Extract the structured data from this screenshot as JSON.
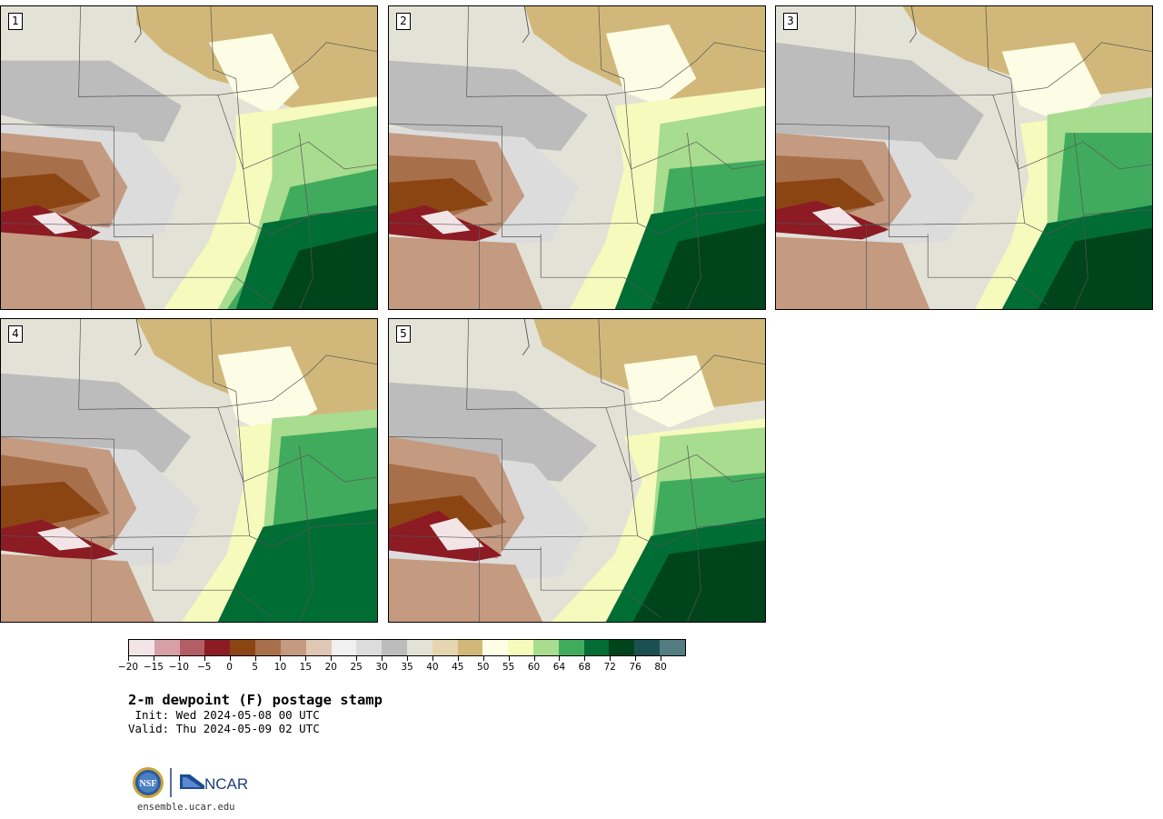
{
  "product": {
    "title": "2-m dewpoint (F) postage stamp",
    "init": " Init: Wed 2024-05-08 00 UTC",
    "valid": "Valid: Thu 2024-05-09 02 UTC",
    "website": "ensemble.ucar.edu"
  },
  "members": [
    "1",
    "2",
    "3",
    "4",
    "5"
  ],
  "colorbar": {
    "colors": [
      "#f3e5e7",
      "#d6a0a6",
      "#b35e67",
      "#8c1b24",
      "#8b4513",
      "#a8704a",
      "#c49a80",
      "#e0c6b4",
      "#f0f0f0",
      "#dcdcdc",
      "#bcbcbc",
      "#e3e2d6",
      "#e6d6b0",
      "#d1b87a",
      "#fdfde6",
      "#f7fabd",
      "#a8dc8f",
      "#41ab5d",
      "#006d35",
      "#00441b",
      "#1b5051",
      "#537d80"
    ],
    "tick_labels": [
      "−20",
      "−15",
      "−10",
      "−5",
      "0",
      "5",
      "10",
      "15",
      "20",
      "25",
      "30",
      "35",
      "40",
      "45",
      "50",
      "55",
      "60",
      "64",
      "68",
      "72",
      "76",
      "80"
    ]
  },
  "logos": {
    "nsf": "NSF",
    "ncar": "NCAR"
  },
  "map_colors": {
    "green_dark": "#00441b",
    "green_mid": "#006d35",
    "green_light": "#41ab5d",
    "green_pale": "#a8dc8f",
    "yellow": "#f7fabd",
    "cream": "#fdfde6",
    "tan": "#d1b87a",
    "tan_light": "#e6d6b0",
    "gray_light": "#e3e2d6",
    "gray": "#bcbcbc",
    "brown": "#a8704a",
    "brown_light": "#c49a80",
    "maroon": "#8c1b24"
  }
}
